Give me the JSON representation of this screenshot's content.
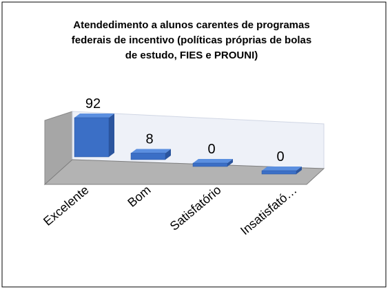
{
  "chart_data": {
    "type": "bar3d",
    "title": "Atendedimento a alunos carentes de programas federais de incentivo (políticas próprias de bolas de estudo, FIES e PROUNI)",
    "categories": [
      "Excelente",
      "Bom",
      "Satisfatório",
      "Insatisfató…"
    ],
    "values": [
      92,
      8,
      0,
      0
    ],
    "color": "#3b6fc6"
  }
}
